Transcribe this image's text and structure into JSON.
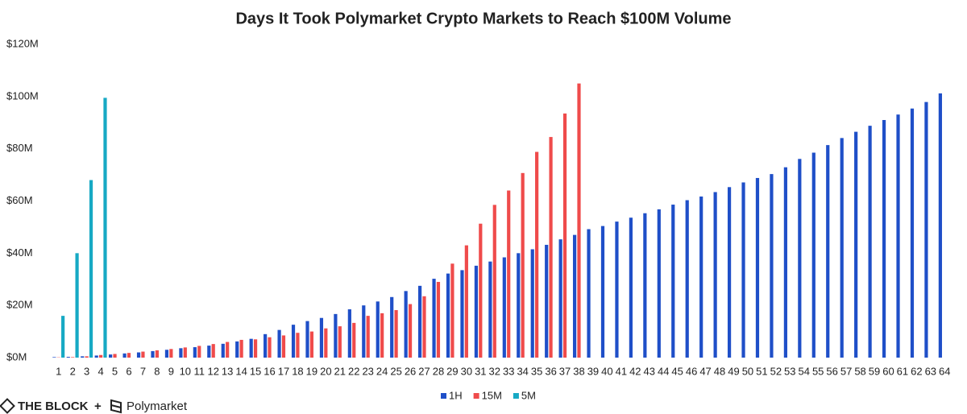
{
  "chart_data": {
    "type": "bar",
    "title": "Days It Took Polymarket Crypto Markets to Reach $100M Volume",
    "categories": [
      "1",
      "2",
      "3",
      "4",
      "5",
      "6",
      "7",
      "8",
      "9",
      "10",
      "11",
      "12",
      "13",
      "14",
      "15",
      "16",
      "17",
      "18",
      "19",
      "20",
      "21",
      "22",
      "23",
      "24",
      "25",
      "26",
      "27",
      "28",
      "29",
      "30",
      "31",
      "32",
      "33",
      "34",
      "35",
      "36",
      "37",
      "38",
      "39",
      "40",
      "41",
      "42",
      "43",
      "44",
      "45",
      "46",
      "47",
      "48",
      "49",
      "50",
      "51",
      "52",
      "53",
      "54",
      "55",
      "56",
      "57",
      "58",
      "59",
      "60",
      "61",
      "62",
      "63",
      "64"
    ],
    "series": [
      {
        "name": "1H",
        "color": "#1f4fc8",
        "values": [
          0.2,
          0.3,
          0.5,
          0.8,
          1.2,
          1.6,
          2.0,
          2.5,
          3.0,
          3.6,
          4.0,
          4.6,
          5.3,
          6.2,
          7.2,
          9.0,
          10.6,
          12.6,
          14.0,
          15.2,
          16.7,
          18.5,
          20.0,
          21.5,
          23.2,
          25.5,
          27.5,
          30.2,
          32.2,
          33.5,
          35.2,
          36.8,
          38.4,
          40.0,
          41.5,
          43.2,
          45.3,
          47.0,
          49.2,
          50.4,
          52.1,
          53.6,
          55.3,
          56.8,
          58.6,
          60.3,
          61.7,
          63.4,
          65.3,
          67.1,
          68.8,
          70.3,
          72.9,
          76.1,
          78.5,
          81.4,
          84.1,
          86.5,
          88.8,
          91.0,
          93.1,
          95.4,
          97.9,
          101.2
        ]
      },
      {
        "name": "15M",
        "color": "#ef4b4b",
        "values": [
          0.1,
          0.2,
          0.5,
          1.0,
          1.4,
          1.8,
          2.3,
          2.8,
          3.3,
          3.9,
          4.5,
          5.2,
          6.0,
          6.8,
          7.0,
          7.8,
          8.5,
          9.5,
          10.0,
          11.2,
          12.0,
          13.3,
          16.0,
          17.0,
          18.2,
          20.5,
          23.5,
          29.0,
          36.0,
          43.0,
          51.3,
          58.5,
          64.0,
          70.7,
          78.8,
          84.5,
          93.5,
          105.0,
          null,
          null,
          null,
          null,
          null,
          null,
          null,
          null,
          null,
          null,
          null,
          null,
          null,
          null,
          null,
          null,
          null,
          null,
          null,
          null,
          null,
          null,
          null,
          null,
          null,
          null
        ]
      },
      {
        "name": "5M",
        "color": "#17a9c4",
        "values": [
          16,
          40,
          68,
          99.5,
          null,
          null,
          null,
          null,
          null,
          null,
          null,
          null,
          null,
          null,
          null,
          null,
          null,
          null,
          null,
          null,
          null,
          null,
          null,
          null,
          null,
          null,
          null,
          null,
          null,
          null,
          null,
          null,
          null,
          null,
          null,
          null,
          null,
          null,
          null,
          null,
          null,
          null,
          null,
          null,
          null,
          null,
          null,
          null,
          null,
          null,
          null,
          null,
          null,
          null,
          null,
          null,
          null,
          null,
          null,
          null,
          null,
          null,
          null,
          null
        ]
      }
    ],
    "ylim": [
      0,
      120
    ],
    "yticks": [
      {
        "value": 0,
        "label": "$0M"
      },
      {
        "value": 20,
        "label": "$20M"
      },
      {
        "value": 40,
        "label": "$40M"
      },
      {
        "value": 60,
        "label": "$60M"
      },
      {
        "value": 80,
        "label": "$80M"
      },
      {
        "value": 100,
        "label": "$100M"
      },
      {
        "value": 120,
        "label": "$120M"
      }
    ],
    "grid": false,
    "legend": "bottom"
  },
  "footer": {
    "brand": "THE BLOCK",
    "plus": "+",
    "partner": "Polymarket"
  }
}
